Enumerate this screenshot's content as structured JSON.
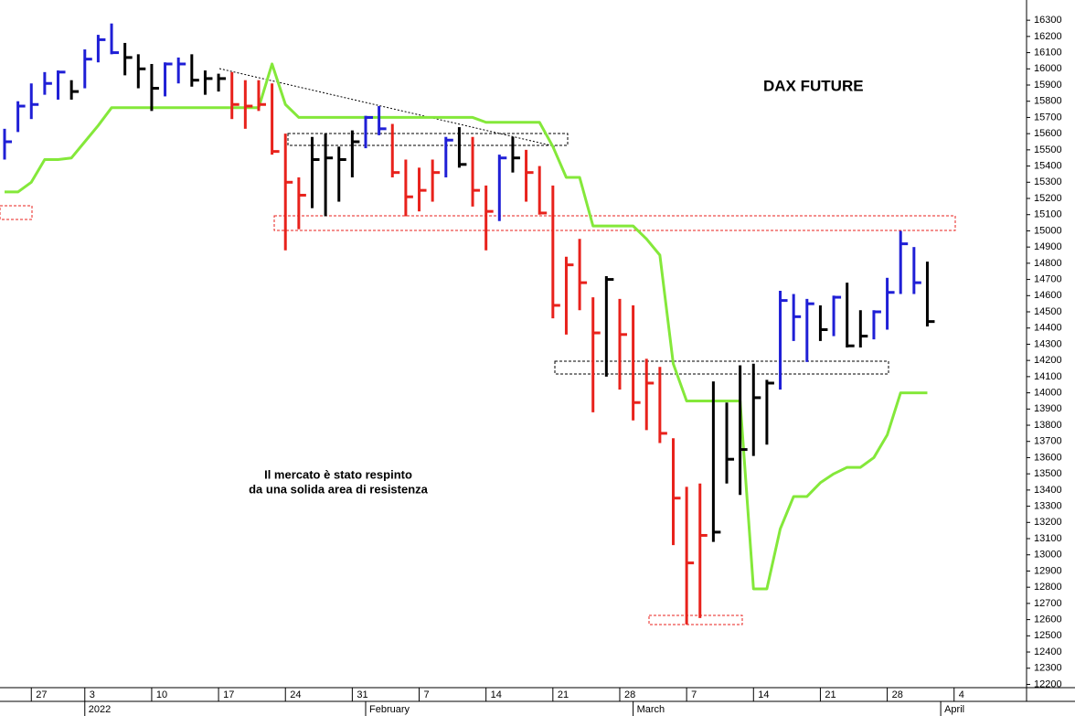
{
  "chart_data": {
    "type": "ohlc",
    "title": "DAX FUTURE",
    "annotation": [
      "Il mercato è stato respinto",
      "da una solida area di resistenza"
    ],
    "categories": [
      null,
      null,
      "27",
      null,
      null,
      null,
      "3",
      null,
      null,
      null,
      null,
      "10",
      null,
      null,
      null,
      null,
      "17",
      null,
      null,
      null,
      null,
      "24",
      null,
      null,
      null,
      null,
      "31",
      null,
      null,
      null,
      null,
      "7",
      null,
      null,
      null,
      null,
      "14",
      null,
      null,
      null,
      null,
      "21",
      null,
      null,
      null,
      null,
      "28",
      null,
      null,
      null,
      null,
      "7",
      null,
      null,
      null,
      null,
      "14",
      null,
      null,
      null,
      null,
      "21",
      null,
      null,
      null,
      null,
      "28",
      null,
      null,
      null,
      null,
      "4"
    ],
    "months": [
      null,
      null,
      null,
      null,
      null,
      null,
      "2022",
      null,
      null,
      null,
      null,
      null,
      null,
      null,
      null,
      null,
      null,
      null,
      null,
      null,
      null,
      null,
      null,
      null,
      null,
      null,
      null,
      "February",
      null,
      null,
      null,
      null,
      null,
      null,
      null,
      null,
      null,
      null,
      null,
      null,
      null,
      null,
      null,
      null,
      null,
      null,
      null,
      "March",
      null,
      null,
      null,
      null,
      null,
      null,
      null,
      null,
      null,
      null,
      null,
      null,
      null,
      null,
      null,
      null,
      null,
      null,
      null,
      null,
      null,
      null,
      "April",
      null
    ],
    "high": [
      15630,
      15800,
      15910,
      15980,
      15990,
      15930,
      16120,
      16210,
      16280,
      16160,
      16090,
      16030,
      16040,
      16070,
      16090,
      15990,
      15970,
      15980,
      15930,
      15930,
      15910,
      15600,
      15330,
      15580,
      15600,
      15520,
      15620,
      15710,
      15770,
      15660,
      15440,
      15390,
      15440,
      15580,
      15640,
      15580,
      15280,
      15470,
      15580,
      15500,
      15400,
      15280,
      14840,
      14950,
      14590,
      14720,
      14580,
      14540,
      14210,
      14160,
      13720,
      13420,
      13440,
      14070,
      13940,
      14170,
      14180,
      14080,
      14630,
      14610,
      14580,
      14540,
      14600,
      14680,
      14510,
      14510,
      14710,
      15000,
      14900,
      14810,
      null,
      null
    ],
    "low": [
      15440,
      15610,
      15690,
      15840,
      15810,
      15810,
      15880,
      16040,
      16090,
      15960,
      15880,
      15740,
      15830,
      15910,
      15890,
      15840,
      15860,
      15690,
      15630,
      15740,
      15470,
      14880,
      15010,
      15140,
      15090,
      15180,
      15330,
      15510,
      15590,
      15330,
      15090,
      15120,
      15180,
      15330,
      15390,
      15150,
      14880,
      15060,
      15360,
      15180,
      15100,
      14460,
      14360,
      14510,
      13880,
      14100,
      14020,
      13830,
      13770,
      13690,
      13060,
      12570,
      12610,
      13080,
      13440,
      13370,
      13610,
      13680,
      14020,
      14320,
      14190,
      14320,
      14350,
      14280,
      14280,
      14330,
      14390,
      14610,
      14610,
      14410,
      null,
      null
    ],
    "close": [
      15550,
      15770,
      15780,
      15910,
      15980,
      15860,
      16060,
      16180,
      16100,
      16070,
      16000,
      15880,
      16030,
      16030,
      15930,
      15940,
      15940,
      15780,
      15770,
      15780,
      15490,
      15300,
      15220,
      15440,
      15450,
      15440,
      15550,
      15700,
      15630,
      15360,
      15210,
      15250,
      15360,
      15560,
      15410,
      15250,
      15120,
      15450,
      15450,
      15360,
      15110,
      14540,
      14790,
      14680,
      14370,
      14700,
      14360,
      13940,
      14060,
      13750,
      13350,
      12950,
      13120,
      13140,
      13590,
      13650,
      13970,
      14060,
      14570,
      14470,
      14550,
      14390,
      14590,
      14290,
      14350,
      14500,
      14620,
      14920,
      14680,
      14440,
      null,
      null
    ],
    "bar_colors": [
      "#1f1fd6",
      "#1f1fd6",
      "#1f1fd6",
      "#1f1fd6",
      "#1f1fd6",
      "#000000",
      "#1f1fd6",
      "#1f1fd6",
      "#1f1fd6",
      "#000000",
      "#000000",
      "#000000",
      "#1f1fd6",
      "#1f1fd6",
      "#000000",
      "#000000",
      "#000000",
      "#e8221c",
      "#e8221c",
      "#e8221c",
      "#e8221c",
      "#e8221c",
      "#e8221c",
      "#000000",
      "#000000",
      "#000000",
      "#000000",
      "#1f1fd6",
      "#1f1fd6",
      "#e8221c",
      "#e8221c",
      "#e8221c",
      "#e8221c",
      "#1f1fd6",
      "#000000",
      "#e8221c",
      "#e8221c",
      "#1f1fd6",
      "#000000",
      "#e8221c",
      "#e8221c",
      "#e8221c",
      "#e8221c",
      "#e8221c",
      "#e8221c",
      "#000000",
      "#e8221c",
      "#e8221c",
      "#e8221c",
      "#e8221c",
      "#e8221c",
      "#e8221c",
      "#e8221c",
      "#000000",
      "#000000",
      "#000000",
      "#000000",
      "#000000",
      "#1f1fd6",
      "#1f1fd6",
      "#1f1fd6",
      "#000000",
      "#1f1fd6",
      "#000000",
      "#000000",
      "#1f1fd6",
      "#1f1fd6",
      "#1f1fd6",
      "#1f1fd6",
      "#000000",
      null,
      null
    ],
    "line": {
      "color": "#84e83a",
      "values": [
        15240,
        15240,
        15300,
        15440,
        15440,
        15450,
        15550,
        15650,
        15760,
        15760,
        15760,
        15760,
        15760,
        15760,
        15760,
        15760,
        15760,
        15760,
        15760,
        15760,
        16030,
        15780,
        15700,
        15700,
        15700,
        15700,
        15700,
        15700,
        15700,
        15700,
        15700,
        15700,
        15700,
        15700,
        15700,
        15700,
        15670,
        15670,
        15670,
        15670,
        15670,
        15520,
        15330,
        15330,
        15030,
        15030,
        15030,
        15030,
        14950,
        14850,
        14180,
        13950,
        13950,
        13950,
        13950,
        13950,
        12790,
        12790,
        13160,
        13360,
        13360,
        13445,
        13500,
        13540,
        13540,
        13600,
        13740,
        14000,
        14000,
        14000,
        null,
        null
      ]
    },
    "ylim": [
      12180,
      16425
    ],
    "yticks": [
      12200,
      12300,
      12400,
      12500,
      12600,
      12700,
      12800,
      12900,
      13000,
      13100,
      13200,
      13300,
      13400,
      13500,
      13600,
      13700,
      13800,
      13900,
      14000,
      14100,
      14200,
      14300,
      14400,
      14500,
      14600,
      14700,
      14800,
      14900,
      15000,
      15100,
      15200,
      15300,
      15400,
      15500,
      15600,
      15700,
      15800,
      15900,
      16000,
      16100,
      16200,
      16300
    ]
  }
}
